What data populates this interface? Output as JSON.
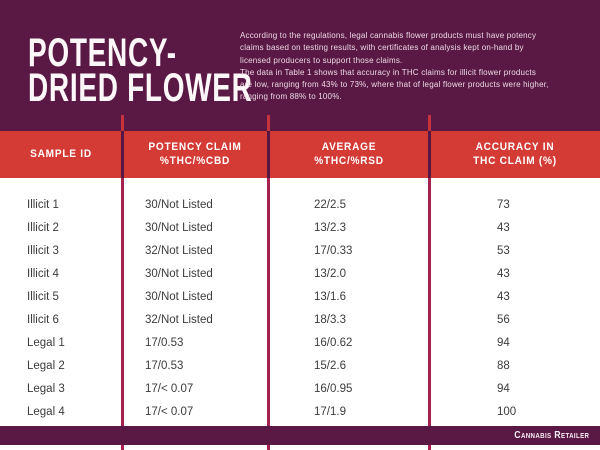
{
  "page": {
    "title_line1": "POTENCY-",
    "title_line2": "DRIED FLOWER"
  },
  "intro": {
    "lines": [
      "According to the regulations, legal cannabis flower products must have potency",
      "claims based on testing results, with certificates of analysis kept on-hand by",
      "licensed producers to support those claims.",
      "The data in Table 1 shows that accuracy in THC claims for illicit flower products",
      "are low, ranging from 43% to 73%, where that of legal flower products were higher,",
      "ranging from 88% to 100%."
    ]
  },
  "table": {
    "headers": [
      [
        "SAMPLE ID"
      ],
      [
        "POTENCY CLAIM",
        "%THC/%CBD"
      ],
      [
        "AVERAGE",
        "%THC/%RSD"
      ],
      [
        "ACCURACY IN",
        "THC CLAIM (%)"
      ]
    ],
    "rows": [
      {
        "sample_id": "Illicit 1",
        "potency_claim": "30/Not Listed",
        "average": "22/2.5",
        "accuracy": "73"
      },
      {
        "sample_id": "Illicit 2",
        "potency_claim": "30/Not Listed",
        "average": "13/2.3",
        "accuracy": "43"
      },
      {
        "sample_id": "Illicit 3",
        "potency_claim": "32/Not Listed",
        "average": "17/0.33",
        "accuracy": "53"
      },
      {
        "sample_id": "Illicit 4",
        "potency_claim": "30/Not Listed",
        "average": "13/2.0",
        "accuracy": "43"
      },
      {
        "sample_id": "Illicit 5",
        "potency_claim": "30/Not Listed",
        "average": "13/1.6",
        "accuracy": "43"
      },
      {
        "sample_id": "Illicit 6",
        "potency_claim": "32/Not Listed",
        "average": "18/3.3",
        "accuracy": "56"
      },
      {
        "sample_id": "Legal 1",
        "potency_claim": "17/0.53",
        "average": "16/0.62",
        "accuracy": "94"
      },
      {
        "sample_id": "Legal 2",
        "potency_claim": "17/0.53",
        "average": "15/2.6",
        "accuracy": "88"
      },
      {
        "sample_id": "Legal 3",
        "potency_claim": "17/< 0.07",
        "average": "16/0.95",
        "accuracy": "94"
      },
      {
        "sample_id": "Legal 4",
        "potency_claim": "17/< 0.07",
        "average": "17/1.9",
        "accuracy": "100"
      }
    ]
  },
  "footer": {
    "brand": "Cannabis Retailer"
  },
  "colors": {
    "background_purple": "#5A1845",
    "header_red": "#D43B35",
    "divider_crimson": "#A5204E",
    "body_text": "#3C3C3C",
    "intro_text": "#ECDAE3"
  },
  "chart_data": {
    "type": "table",
    "title": "Potency - Dried Flower",
    "columns": [
      "Sample ID",
      "Potency Claim %THC/%CBD",
      "Average %THC/%RSD",
      "Accuracy in THC Claim (%)"
    ],
    "rows": [
      [
        "Illicit 1",
        "30/Not Listed",
        "22/2.5",
        73
      ],
      [
        "Illicit 2",
        "30/Not Listed",
        "13/2.3",
        43
      ],
      [
        "Illicit 3",
        "32/Not Listed",
        "17/0.33",
        53
      ],
      [
        "Illicit 4",
        "30/Not Listed",
        "13/2.0",
        43
      ],
      [
        "Illicit 5",
        "30/Not Listed",
        "13/1.6",
        43
      ],
      [
        "Illicit 6",
        "32/Not Listed",
        "18/3.3",
        56
      ],
      [
        "Legal 1",
        "17/0.53",
        "16/0.62",
        94
      ],
      [
        "Legal 2",
        "17/0.53",
        "15/2.6",
        88
      ],
      [
        "Legal 3",
        "17/< 0.07",
        "16/0.95",
        94
      ],
      [
        "Legal 4",
        "17/< 0.07",
        "17/1.9",
        100
      ]
    ],
    "notes": "Illicit flower THC-claim accuracy ranges 43%-73%; legal flower ranges 88%-100%."
  }
}
